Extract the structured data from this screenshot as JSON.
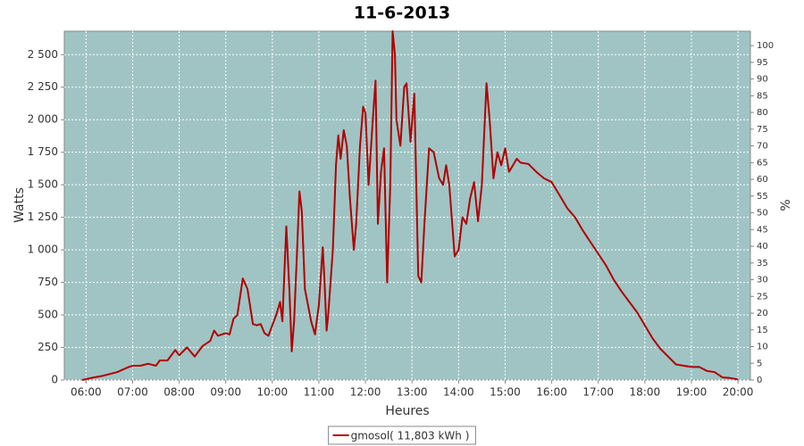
{
  "chart_data": {
    "type": "line",
    "title": "11-6-2013",
    "x_label": "Heures",
    "y_label": "Watts",
    "y2_label": "%",
    "x": [
      "05:55",
      "06:10",
      "06:20",
      "06:40",
      "06:55",
      "07:00",
      "07:10",
      "07:20",
      "07:30",
      "07:35",
      "07:45",
      "07:55",
      "08:00",
      "08:10",
      "08:20",
      "08:30",
      "08:40",
      "08:45",
      "08:50",
      "09:00",
      "09:05",
      "09:10",
      "09:15",
      "09:22",
      "09:28",
      "09:35",
      "09:40",
      "09:45",
      "09:50",
      "09:55",
      "10:00",
      "10:05",
      "10:10",
      "10:13",
      "10:18",
      "10:22",
      "10:25",
      "10:28",
      "10:32",
      "10:35",
      "10:38",
      "10:42",
      "10:50",
      "10:55",
      "11:00",
      "11:05",
      "11:07",
      "11:10",
      "11:12",
      "11:18",
      "11:22",
      "11:25",
      "11:28",
      "11:32",
      "11:36",
      "11:40",
      "11:45",
      "11:48",
      "11:53",
      "11:57",
      "12:00",
      "12:04",
      "12:10",
      "12:13",
      "12:16",
      "12:20",
      "12:24",
      "12:28",
      "12:32",
      "12:35",
      "12:38",
      "12:40",
      "12:45",
      "12:50",
      "12:53",
      "12:58",
      "13:03",
      "13:08",
      "13:12",
      "13:16",
      "13:22",
      "13:28",
      "13:35",
      "13:40",
      "13:44",
      "13:48",
      "13:55",
      "14:00",
      "14:05",
      "14:10",
      "14:15",
      "14:20",
      "14:25",
      "14:30",
      "14:36",
      "14:40",
      "14:45",
      "14:50",
      "14:55",
      "15:00",
      "15:05",
      "15:10",
      "15:15",
      "15:20",
      "15:30",
      "15:40",
      "15:50",
      "16:00",
      "16:10",
      "16:20",
      "16:30",
      "16:40",
      "16:50",
      "17:00",
      "17:10",
      "17:20",
      "17:30",
      "17:40",
      "17:50",
      "18:00",
      "18:10",
      "18:20",
      "18:30",
      "18:40",
      "18:50",
      "19:00",
      "19:10",
      "19:20",
      "19:30",
      "19:40",
      "19:50",
      "20:00"
    ],
    "xlim": [
      "05:32",
      "20:16"
    ],
    "xticks": [
      "06:00",
      "07:00",
      "08:00",
      "09:00",
      "10:00",
      "11:00",
      "12:00",
      "13:00",
      "14:00",
      "15:00",
      "16:00",
      "17:00",
      "18:00",
      "19:00",
      "20:00"
    ],
    "ylim": [
      0,
      2680
    ],
    "yticks": [
      0,
      250,
      500,
      750,
      {
        "value": 1000,
        "label": "1 000"
      },
      {
        "value": 1250,
        "label": "1 250"
      },
      {
        "value": 1500,
        "label": "1 500"
      },
      {
        "value": 1750,
        "label": "1 750"
      },
      {
        "value": 2000,
        "label": "2 000"
      },
      {
        "value": 2250,
        "label": "2 250"
      },
      {
        "value": 2500,
        "label": "2 500"
      }
    ],
    "y2lim": [
      0,
      104.3
    ],
    "y2ticks": [
      0,
      5,
      10,
      15,
      20,
      25,
      30,
      35,
      40,
      45,
      50,
      55,
      60,
      65,
      70,
      75,
      80,
      85,
      90,
      95,
      100
    ],
    "grid": true,
    "legend": "bottom",
    "series": [
      {
        "name": "gmosol( 11,803 kWh )",
        "color": "#b00000",
        "values": [
          0,
          20,
          30,
          60,
          100,
          110,
          110,
          125,
          110,
          150,
          150,
          230,
          190,
          250,
          180,
          260,
          300,
          380,
          340,
          360,
          350,
          470,
          500,
          780,
          700,
          430,
          420,
          430,
          360,
          340,
          420,
          500,
          600,
          450,
          1180,
          700,
          220,
          450,
          1000,
          1450,
          1300,
          700,
          450,
          350,
          580,
          1020,
          800,
          380,
          500,
          1000,
          1650,
          1880,
          1700,
          1920,
          1800,
          1400,
          1000,
          1200,
          1800,
          2100,
          2050,
          1500,
          2050,
          2300,
          1200,
          1600,
          1780,
          750,
          1500,
          2680,
          2500,
          2000,
          1800,
          2250,
          2280,
          1830,
          2200,
          800,
          750,
          1200,
          1780,
          1750,
          1550,
          1500,
          1650,
          1500,
          950,
          1000,
          1250,
          1200,
          1400,
          1520,
          1220,
          1500,
          2280,
          2000,
          1550,
          1750,
          1650,
          1780,
          1600,
          1650,
          1700,
          1670,
          1660,
          1600,
          1550,
          1520,
          1420,
          1320,
          1250,
          1150,
          1060,
          970,
          880,
          770,
          680,
          600,
          520,
          420,
          320,
          240,
          180,
          120,
          110,
          100,
          100,
          70,
          60,
          20,
          15,
          5
        ]
      }
    ]
  }
}
